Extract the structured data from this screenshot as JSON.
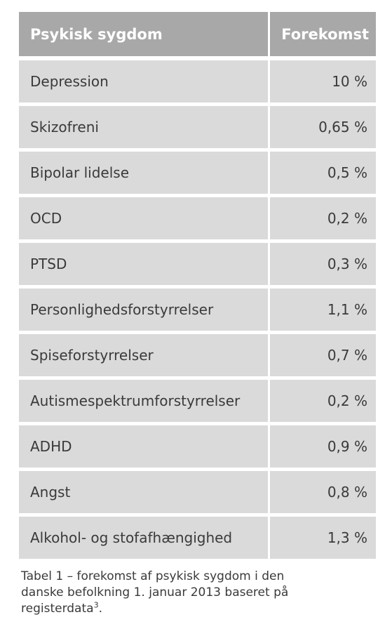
{
  "table": {
    "headers": [
      "Psykisk sygdom",
      "Forekomst"
    ],
    "rows": [
      [
        "Depression",
        "10 %"
      ],
      [
        "Skizofreni",
        "0,65 %"
      ],
      [
        "Bipolar lidelse",
        "0,5 %"
      ],
      [
        "OCD",
        "0,2 %"
      ],
      [
        "PTSD",
        "0,3 %"
      ],
      [
        "Personlighedsforstyrrelser",
        "1,1 %"
      ],
      [
        "Spiseforstyrrelser",
        "0,7 %"
      ],
      [
        "Autismespektrumforstyrrelser",
        "0,2 %"
      ],
      [
        "ADHD",
        "0,9 %"
      ],
      [
        "Angst",
        "0,8 %"
      ],
      [
        "Alkohol- og stofafhængighed",
        "1,3 %"
      ]
    ]
  },
  "caption": {
    "line1": "Tabel 1 – forekomst af psykisk sygdom i den",
    "line2": "danske befolkning 1. januar 2013 baseret på",
    "line3": "registerdata",
    "superscript": "3",
    "end": "."
  },
  "colors": {
    "header_bg": "#a8a8a8",
    "row_bg": "#dadada",
    "text": "#3a3a3a"
  }
}
